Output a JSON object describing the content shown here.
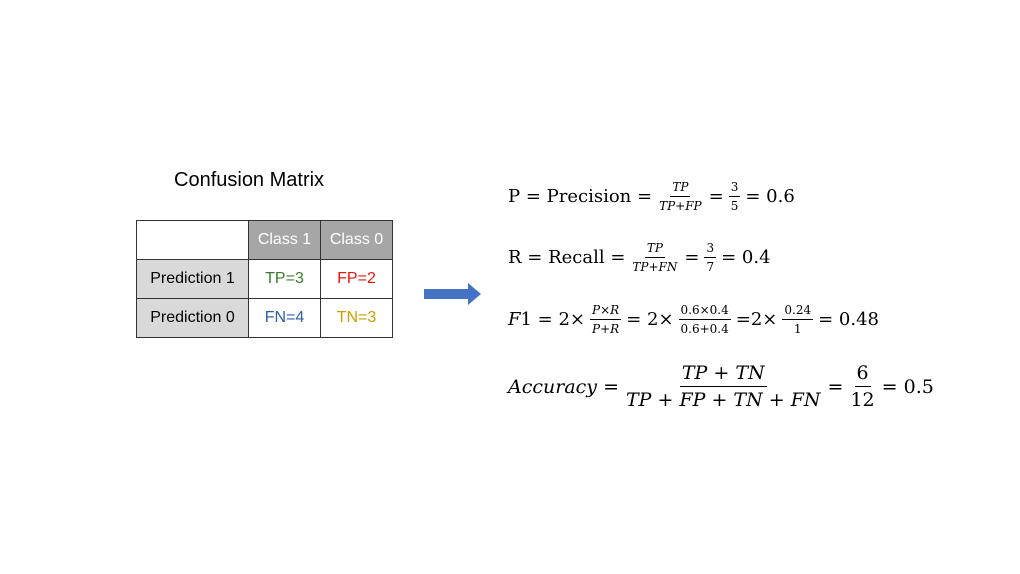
{
  "title": "Confusion Matrix",
  "matrix": {
    "col_headers": [
      "Class 1",
      "Class 0"
    ],
    "rows": [
      {
        "label": "Prediction 1",
        "cells": [
          {
            "text": "TP=3",
            "color": "#3a7d2b"
          },
          {
            "text": "FP=2",
            "color": "#e8140f"
          }
        ]
      },
      {
        "label": "Prediction 0",
        "cells": [
          {
            "text": "FN=4",
            "color": "#2f5fa6"
          },
          {
            "text": "TN=3",
            "color": "#c9a000"
          }
        ]
      }
    ],
    "header_bg": "#a6a6a6",
    "row_label_bg": "#d9d9d9"
  },
  "arrow_color": "#4472c4",
  "equations": {
    "precision": {
      "lhs": "P = Precision =",
      "num": "TP",
      "den": "TP+FP",
      "eq1": "=",
      "fnum": "3",
      "fden": "5",
      "result": "= 0.6"
    },
    "recall": {
      "lhs": "R = Recall =",
      "num": "TP",
      "den": "TP+FN",
      "eq1": "=",
      "fnum": "3",
      "fden": "7",
      "result": "= 0.4"
    },
    "f1": {
      "lhs_var": "F",
      "lhs_rest": "1 = 2×",
      "num": "P×R",
      "den": "P+R",
      "eq1": "= 2×",
      "num2": "0.6×0.4",
      "den2": "0.6+0.4",
      "eq2": "=2×",
      "num3": "0.24",
      "den3": "1",
      "result": "= 0.48"
    },
    "accuracy": {
      "lhs": "Accuracy =",
      "num": "TP + TN",
      "den": "TP + FP + TN + FN",
      "eq1": "=",
      "fnum": "6",
      "fden": "12",
      "result": "= 0.5"
    }
  }
}
